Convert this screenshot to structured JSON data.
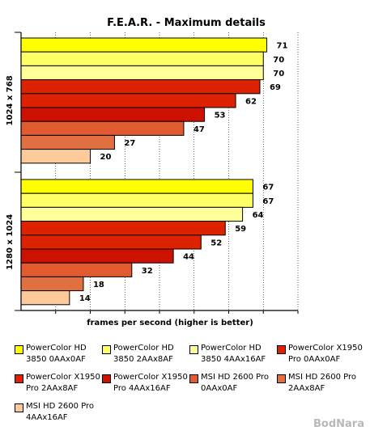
{
  "chart_data": {
    "type": "bar",
    "orientation": "horizontal",
    "title": "F.E.A.R. - Maximum details",
    "xlabel": "frames per second (higher is better)",
    "ylabel": "",
    "xlim": [
      0,
      80
    ],
    "grid": true,
    "legend_position": "bottom",
    "groups": [
      "1024 x 768",
      "1280 x 1024"
    ],
    "series": [
      {
        "name": "PowerColor HD 3850 0AAx0AF",
        "color": "#ffff00",
        "values": [
          71,
          67
        ]
      },
      {
        "name": "PowerColor HD 3850 2AAx8AF",
        "color": "#ffff66",
        "values": [
          70,
          67
        ]
      },
      {
        "name": "PowerColor HD 3850 4AAx16AF",
        "color": "#ffff99",
        "values": [
          70,
          64
        ]
      },
      {
        "name": "PowerColor X1950 Pro 0AAx0AF",
        "color": "#dd2200",
        "values": [
          69,
          59
        ]
      },
      {
        "name": "PowerColor X1950 Pro 2AAx8AF",
        "color": "#dd2200",
        "values": [
          62,
          52
        ]
      },
      {
        "name": "PowerColor X1950 Pro 4AAx16AF",
        "color": "#cc1100",
        "values": [
          53,
          44
        ]
      },
      {
        "name": "MSI HD 2600 Pro 0AAx0AF",
        "color": "#e05c30",
        "values": [
          47,
          32
        ]
      },
      {
        "name": "MSI HD 2600 Pro 2AAx8AF",
        "color": "#e07040",
        "values": [
          27,
          18
        ]
      },
      {
        "name": "MSI HD 2600 Pro 4AAx16AF",
        "color": "#fccb99",
        "values": [
          20,
          14
        ]
      }
    ]
  },
  "legend": {
    "items": [
      {
        "line1": "PowerColor HD",
        "line2": "3850 0AAx0AF"
      },
      {
        "line1": "PowerColor HD",
        "line2": "3850 2AAx8AF"
      },
      {
        "line1": "PowerColor HD",
        "line2": "3850 4AAx16AF"
      },
      {
        "line1": "PowerColor X1950",
        "line2": "Pro 0AAx0AF"
      },
      {
        "line1": "PowerColor X1950",
        "line2": "Pro 2AAx8AF"
      },
      {
        "line1": "PowerColor X1950",
        "line2": "Pro 4AAx16AF"
      },
      {
        "line1": "MSI HD 2600 Pro",
        "line2": "0AAx0AF"
      },
      {
        "line1": "MSI HD 2600 Pro",
        "line2": "2AAx8AF"
      },
      {
        "line1": "MSI HD 2600 Pro",
        "line2": "4AAx16AF"
      }
    ]
  },
  "watermark": "BodNara"
}
